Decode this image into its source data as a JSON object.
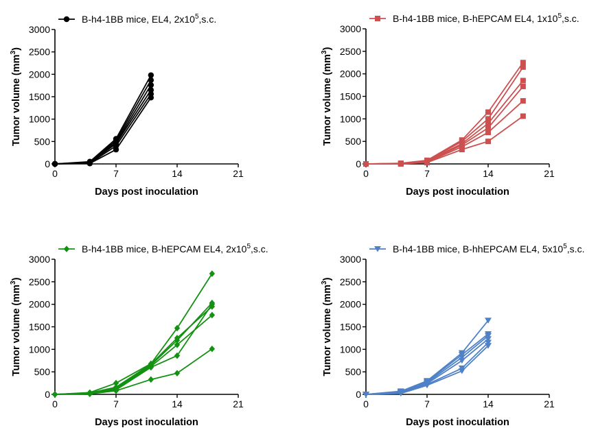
{
  "chart_data": [
    {
      "type": "line",
      "legend": {
        "label": "B-h4-1BB mice, EL4, 2x10",
        "sup": "5",
        "suffix": ",s.c."
      },
      "color": "#000000",
      "marker": "circle",
      "xlabel": "Days post inoculation",
      "ylabel": "Tumor volume (mm",
      "ylabel_sup": "3",
      "ylabel_end": ")",
      "xlim": [
        0,
        21
      ],
      "ylim": [
        0,
        3000
      ],
      "xticks": [
        "0",
        "7",
        "14",
        "21"
      ],
      "yticks": [
        "0",
        "500",
        "1000",
        "1500",
        "2000",
        "2500",
        "3000"
      ],
      "series": [
        {
          "x": [
            0,
            4,
            7,
            11
          ],
          "y": [
            0,
            10,
            320,
            1480
          ]
        },
        {
          "x": [
            0,
            4,
            7,
            11
          ],
          "y": [
            0,
            20,
            400,
            1560
          ]
        },
        {
          "x": [
            0,
            4,
            7,
            11
          ],
          "y": [
            0,
            25,
            450,
            1650
          ]
        },
        {
          "x": [
            0,
            4,
            7,
            11
          ],
          "y": [
            0,
            30,
            480,
            1760
          ]
        },
        {
          "x": [
            0,
            4,
            7,
            11
          ],
          "y": [
            0,
            40,
            520,
            1870
          ]
        },
        {
          "x": [
            0,
            4,
            7,
            11
          ],
          "y": [
            0,
            50,
            560,
            1980
          ]
        }
      ]
    },
    {
      "type": "line",
      "legend": {
        "label": "B-h4-1BB mice, B-hEPCAM EL4, 1x10",
        "sup": "5",
        "suffix": ",s.c."
      },
      "color": "#cc5050",
      "marker": "square",
      "xlabel": "Days post inoculation",
      "ylabel": "Tumor volume (mm",
      "ylabel_sup": "3",
      "ylabel_end": ")",
      "xlim": [
        0,
        21
      ],
      "ylim": [
        0,
        3000
      ],
      "xticks": [
        "0",
        "7",
        "14",
        "21"
      ],
      "yticks": [
        "0",
        "500",
        "1000",
        "1500",
        "2000",
        "2500",
        "3000"
      ],
      "series": [
        {
          "x": [
            0,
            4,
            7,
            11,
            14,
            18
          ],
          "y": [
            0,
            0,
            30,
            320,
            500,
            1060
          ]
        },
        {
          "x": [
            0,
            4,
            7,
            11,
            14,
            18
          ],
          "y": [
            0,
            5,
            40,
            380,
            700,
            1400
          ]
        },
        {
          "x": [
            0,
            4,
            7,
            11,
            14,
            18
          ],
          "y": [
            0,
            5,
            50,
            420,
            800,
            1720
          ]
        },
        {
          "x": [
            0,
            4,
            7,
            11,
            14,
            18
          ],
          "y": [
            0,
            10,
            60,
            450,
            900,
            1850
          ]
        },
        {
          "x": [
            0,
            4,
            7,
            11,
            14,
            18
          ],
          "y": [
            0,
            10,
            70,
            500,
            1000,
            2150
          ]
        },
        {
          "x": [
            0,
            4,
            7,
            11,
            14,
            18
          ],
          "y": [
            0,
            15,
            80,
            530,
            1150,
            2250
          ]
        }
      ]
    },
    {
      "type": "line",
      "legend": {
        "label": "B-h4-1BB mice, B-hEPCAM EL4, 2x10",
        "sup": "5",
        "suffix": ",s.c."
      },
      "color": "#129112",
      "marker": "diamond",
      "xlabel": "Days post inoculation",
      "ylabel": "Tumor volume (mm",
      "ylabel_sup": "3",
      "ylabel_end": ")",
      "xlim": [
        0,
        21
      ],
      "ylim": [
        0,
        3000
      ],
      "xticks": [
        "0",
        "7",
        "14",
        "21"
      ],
      "yticks": [
        "0",
        "500",
        "1000",
        "1500",
        "2000",
        "2500",
        "3000"
      ],
      "series": [
        {
          "x": [
            0,
            4,
            7,
            11,
            14,
            18
          ],
          "y": [
            0,
            10,
            80,
            330,
            470,
            1010
          ]
        },
        {
          "x": [
            0,
            4,
            7,
            11,
            14,
            18
          ],
          "y": [
            0,
            20,
            100,
            600,
            860,
            2000
          ]
        },
        {
          "x": [
            0,
            4,
            7,
            11,
            14,
            18
          ],
          "y": [
            0,
            20,
            120,
            620,
            1100,
            1760
          ]
        },
        {
          "x": [
            0,
            4,
            7,
            11,
            14,
            18
          ],
          "y": [
            0,
            30,
            140,
            650,
            1200,
            2030
          ]
        },
        {
          "x": [
            0,
            4,
            7,
            11,
            14,
            18
          ],
          "y": [
            0,
            30,
            160,
            670,
            1250,
            1950
          ]
        },
        {
          "x": [
            0,
            4,
            7,
            11,
            14,
            18
          ],
          "y": [
            0,
            40,
            250,
            680,
            1470,
            2680
          ]
        }
      ]
    },
    {
      "type": "line",
      "legend": {
        "label": "B-h4-1BB mice, B-hhEPCAM EL4, 5x10",
        "sup": "5",
        "suffix": ",s.c."
      },
      "color": "#4f81c7",
      "marker": "triangle-down",
      "xlabel": "Days post inoculation",
      "ylabel": "Tumor volume (mm",
      "ylabel_sup": "3",
      "ylabel_end": ")",
      "xlim": [
        0,
        21
      ],
      "ylim": [
        0,
        3000
      ],
      "xticks": [
        "0",
        "7",
        "14",
        "21"
      ],
      "yticks": [
        "0",
        "500",
        "1000",
        "1500",
        "2000",
        "2500",
        "3000"
      ],
      "series": [
        {
          "x": [
            0,
            4,
            7,
            11,
            14
          ],
          "y": [
            0,
            20,
            200,
            520,
            1080
          ]
        },
        {
          "x": [
            0,
            4,
            7,
            11,
            14
          ],
          "y": [
            0,
            30,
            220,
            580,
            1150
          ]
        },
        {
          "x": [
            0,
            4,
            7,
            11,
            14
          ],
          "y": [
            0,
            40,
            240,
            750,
            1230
          ]
        },
        {
          "x": [
            0,
            4,
            7,
            11,
            14
          ],
          "y": [
            0,
            50,
            260,
            820,
            1300
          ]
        },
        {
          "x": [
            0,
            4,
            7,
            11,
            14
          ],
          "y": [
            0,
            60,
            280,
            880,
            1340
          ]
        },
        {
          "x": [
            0,
            4,
            7,
            11,
            14
          ],
          "y": [
            0,
            70,
            300,
            920,
            1640
          ]
        }
      ]
    }
  ]
}
